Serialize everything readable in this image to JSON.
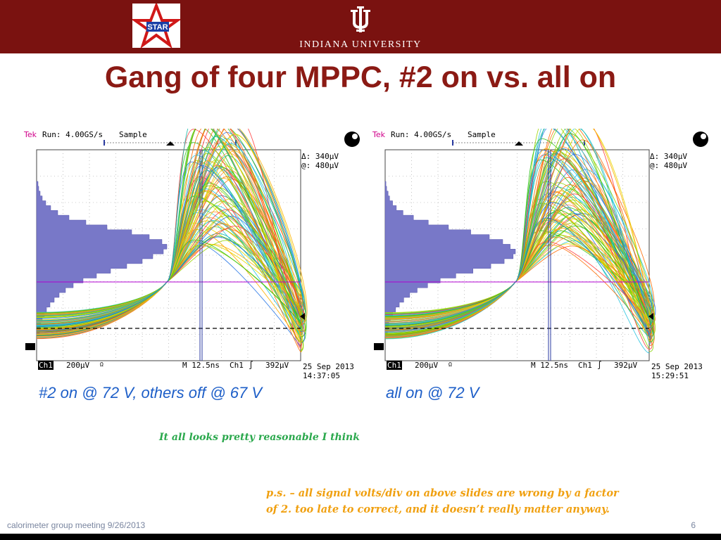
{
  "header": {
    "star_logo_text": "STAR",
    "university_name": "INDIANA UNIVERSITY",
    "colors": {
      "bar": "#7a1210",
      "title": "#8b1a14"
    }
  },
  "title": "Gang of four MPPC, #2 on vs. all on",
  "scopes": [
    {
      "brand": "Tek",
      "run": "Run: 4.00GS/s",
      "mode": "Sample",
      "delta": "Δ: 340µV",
      "at": "@: 480µV",
      "channel": "Ch1",
      "volts_div": "200µV",
      "bw_mark": "Ω",
      "timebase": "M 12.5ns",
      "trigger_ch": "Ch1",
      "trigger_slope": "∫",
      "trigger_level": "392µV",
      "date": "25 Sep 2013",
      "time": "14:37:05",
      "caption": "#2 on @ 72 V, others off @ 67 V",
      "histogram": [
        2,
        3,
        5,
        8,
        13,
        20,
        30,
        46,
        70,
        100,
        135,
        160,
        178,
        185,
        180,
        165,
        150,
        128,
        105,
        85,
        66,
        52,
        41,
        32,
        25,
        19,
        14,
        11,
        8,
        6,
        5,
        4
      ]
    },
    {
      "brand": "Tek",
      "run": "Run: 4.00GS/s",
      "mode": "Sample",
      "delta": "Δ: 340µV",
      "at": "@: 480µV",
      "channel": "Ch1",
      "volts_div": "200µV",
      "bw_mark": "Ω",
      "timebase": "M 12.5ns",
      "trigger_ch": "Ch1",
      "trigger_slope": "∫",
      "trigger_level": "392µV",
      "date": "25 Sep 2013",
      "time": "15:29:51",
      "caption": "all on @ 72 V",
      "histogram": [
        1,
        2,
        4,
        6,
        10,
        15,
        24,
        38,
        58,
        85,
        115,
        140,
        158,
        168,
        175,
        172,
        160,
        142,
        118,
        95,
        74,
        57,
        43,
        33,
        25,
        19,
        14,
        10,
        7,
        5,
        4,
        3
      ]
    }
  ],
  "note": "It all looks pretty reasonable I think",
  "ps_line1": "p.s. – all signal volts/div on above slides are wrong by a factor",
  "ps_line2": "of 2. too late to correct, and it doesn’t really matter anyway.",
  "footer": {
    "left": "calorimeter group meeting 9/26/2013",
    "page": "6"
  }
}
